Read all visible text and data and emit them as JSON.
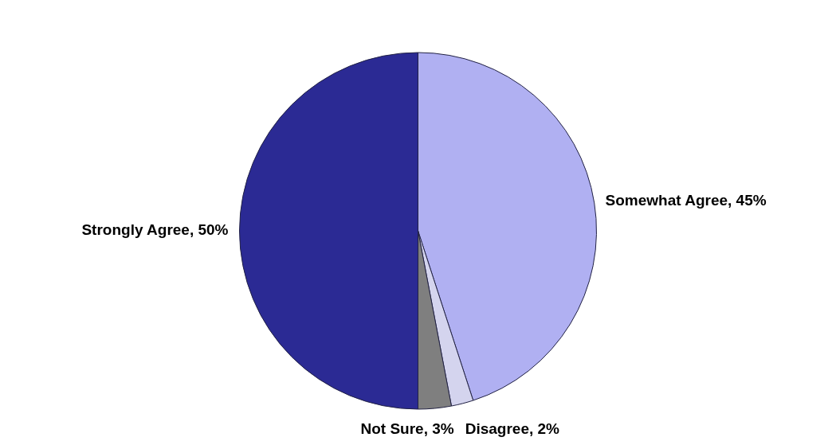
{
  "chart_data": {
    "type": "pie",
    "categories": [
      "Somewhat Agree",
      "Disagree",
      "Not Sure",
      "Strongly Agree"
    ],
    "values": [
      45,
      2,
      3,
      50
    ],
    "value_labels": [
      "45%",
      "2%",
      "3%",
      "50%"
    ],
    "colors": [
      "#b0b0f2",
      "#d4d4ee",
      "#7f7f7f",
      "#2b2a94"
    ],
    "legend": false
  }
}
